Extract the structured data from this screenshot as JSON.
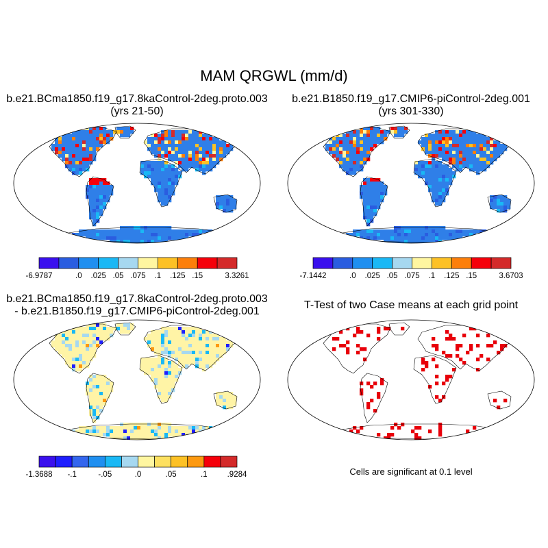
{
  "figure": {
    "main_title": "MAM QRGWL (mm/d)",
    "significance_note": "Cells are significant at 0.1 level"
  },
  "panels": [
    {
      "title_line1": "b.e21.BCma1850.f19_g17.8kaControl-2deg.proto.003",
      "title_line2": "(yrs 21-50)",
      "colorbar": {
        "colors": [
          "#3a10ee",
          "#2a5de0",
          "#1f8ff0",
          "#1ab8f5",
          "#a6d8f0",
          "#fff6a0",
          "#fdc125",
          "#fd7f0a",
          "#f5000a",
          "#d42a2a"
        ],
        "labels": [
          "-6.9787",
          "",
          ".0",
          ".025",
          ".05",
          ".075",
          ".1",
          ".125",
          ".15",
          "",
          "3.3261"
        ]
      }
    },
    {
      "title_line1": "b.e21.B1850.f19_g17.CMIP6-piControl-2deg.001",
      "title_line2": "(yrs 301-330)",
      "colorbar": {
        "colors": [
          "#3a10ee",
          "#2a5de0",
          "#1f8ff0",
          "#1ab8f5",
          "#a6d8f0",
          "#fff6a0",
          "#fdc125",
          "#fd7f0a",
          "#f5000a",
          "#d42a2a"
        ],
        "labels": [
          "-7.1442",
          "",
          ".0",
          ".025",
          ".05",
          ".075",
          ".1",
          ".125",
          ".15",
          "",
          "3.6703"
        ]
      }
    },
    {
      "title_line1": "b.e21.BCma1850.f19_g17.8kaControl-2deg.proto.003",
      "title_line2": "- b.e21.B1850.f19_g17.CMIP6-piControl-2deg.001",
      "colorbar": {
        "colors": [
          "#3a10ee",
          "#1e1eff",
          "#3466ee",
          "#1f8ff0",
          "#1ab8f5",
          "#a6d8f0",
          "#fff6a0",
          "#fde060",
          "#fdc125",
          "#fd9910",
          "#f5000a",
          "#d42a2a"
        ],
        "labels": [
          "-1.3688",
          "",
          "-.1",
          "",
          "-.05",
          "",
          ".0",
          "",
          ".05",
          "",
          ".1",
          "",
          ".9284"
        ]
      }
    },
    {
      "title_line1": "T-Test of two Case means at each grid point",
      "title_line2": ""
    }
  ],
  "colors": {
    "ocean": "#ffffff",
    "land_base_case": "#2f7fe8",
    "land_base_diff": "#fff4a6",
    "significant": "#e8000a",
    "coastline": "#000000"
  }
}
